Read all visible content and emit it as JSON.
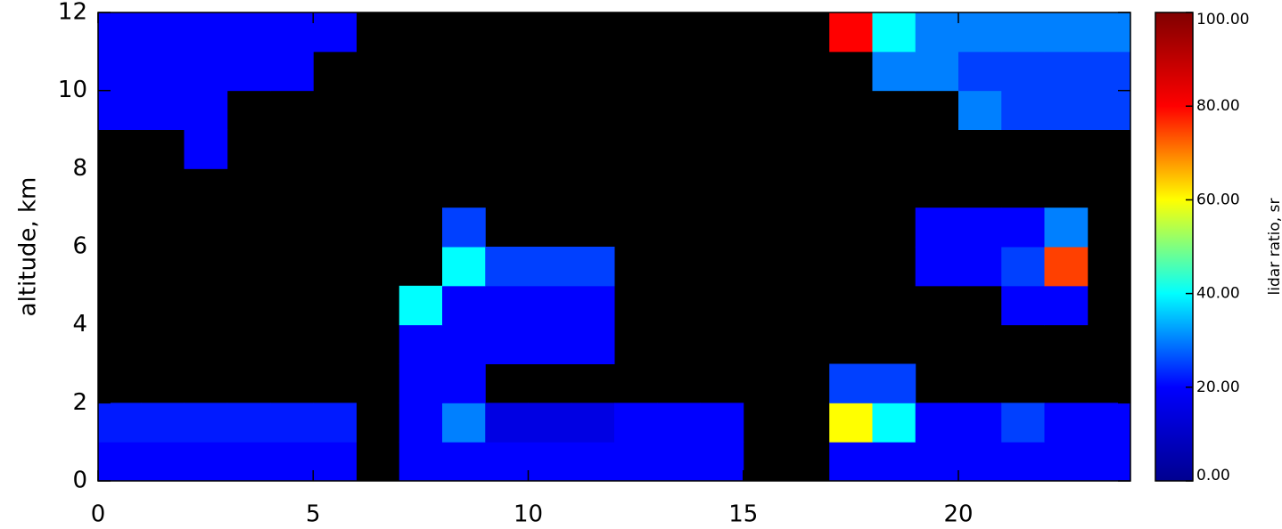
{
  "chart_data": {
    "type": "heatmap",
    "ylabel": "altitude, km",
    "xlim": [
      0,
      24
    ],
    "ylim": [
      0,
      12
    ],
    "xticks": [
      0,
      5,
      10,
      15,
      20
    ],
    "yticks": [
      0,
      2,
      4,
      6,
      8,
      10,
      12
    ],
    "xbins": [
      0,
      1,
      2,
      3,
      4,
      5,
      6,
      7,
      8,
      9,
      10,
      11,
      12,
      13,
      14,
      15,
      16,
      17,
      18,
      19,
      20,
      21,
      22,
      23,
      24
    ],
    "ybins": [
      0,
      1,
      2,
      3,
      4,
      5,
      6,
      7,
      8,
      9,
      10,
      11,
      12
    ],
    "values": [
      [
        20,
        20,
        20,
        20,
        20,
        20,
        null,
        20,
        20,
        20,
        20,
        20,
        20,
        20,
        20,
        null,
        null,
        20,
        20,
        20,
        20,
        20,
        20,
        20
      ],
      [
        22,
        22,
        22,
        22,
        22,
        22,
        null,
        20,
        30,
        15,
        15,
        15,
        20,
        20,
        20,
        null,
        null,
        60,
        40,
        20,
        20,
        25,
        20,
        20
      ],
      [
        null,
        null,
        null,
        null,
        null,
        null,
        null,
        20,
        20,
        null,
        null,
        null,
        null,
        null,
        null,
        null,
        null,
        25,
        25,
        null,
        null,
        null,
        null,
        null
      ],
      [
        null,
        null,
        null,
        null,
        null,
        null,
        null,
        20,
        20,
        20,
        20,
        20,
        null,
        null,
        null,
        null,
        null,
        null,
        null,
        null,
        null,
        null,
        null,
        null
      ],
      [
        null,
        null,
        null,
        null,
        null,
        null,
        null,
        40,
        20,
        20,
        20,
        20,
        null,
        null,
        null,
        null,
        null,
        null,
        null,
        null,
        null,
        20,
        20,
        null
      ],
      [
        null,
        null,
        null,
        null,
        null,
        null,
        null,
        null,
        40,
        25,
        25,
        25,
        null,
        null,
        null,
        null,
        null,
        null,
        null,
        20,
        20,
        25,
        75,
        null
      ],
      [
        null,
        null,
        null,
        null,
        null,
        null,
        null,
        null,
        25,
        null,
        null,
        null,
        null,
        null,
        null,
        null,
        null,
        null,
        null,
        20,
        20,
        20,
        30,
        null
      ],
      [
        null,
        null,
        null,
        null,
        null,
        null,
        null,
        null,
        null,
        null,
        null,
        null,
        null,
        null,
        null,
        null,
        null,
        null,
        null,
        null,
        null,
        null,
        null,
        null
      ],
      [
        null,
        null,
        20,
        null,
        null,
        null,
        null,
        null,
        null,
        null,
        null,
        null,
        null,
        null,
        null,
        null,
        null,
        null,
        null,
        null,
        null,
        null,
        null,
        null
      ],
      [
        20,
        20,
        20,
        null,
        null,
        null,
        null,
        null,
        null,
        null,
        null,
        null,
        null,
        null,
        null,
        null,
        null,
        null,
        null,
        null,
        30,
        25,
        25,
        25
      ],
      [
        20,
        20,
        20,
        20,
        20,
        null,
        null,
        null,
        null,
        null,
        null,
        null,
        null,
        null,
        null,
        null,
        null,
        null,
        30,
        30,
        25,
        25,
        25,
        25
      ],
      [
        20,
        20,
        20,
        20,
        20,
        20,
        null,
        null,
        null,
        null,
        null,
        null,
        null,
        null,
        null,
        null,
        null,
        80,
        40,
        30,
        30,
        30,
        30,
        30
      ]
    ],
    "colormap": [
      "#00008f",
      "#0000ff",
      "#00ffff",
      "#ffff00",
      "#ff0000",
      "#800000"
    ],
    "colorbar": {
      "label": "lidar ratio, sr",
      "lim": [
        0,
        100
      ],
      "ticks": [
        {
          "value": 0,
          "label": "0.00"
        },
        {
          "value": 20,
          "label": "20.00"
        },
        {
          "value": 40,
          "label": "40.00"
        },
        {
          "value": 60,
          "label": "60.00"
        },
        {
          "value": 80,
          "label": "80.00"
        },
        {
          "value": 100,
          "label": "100.00"
        }
      ]
    }
  }
}
